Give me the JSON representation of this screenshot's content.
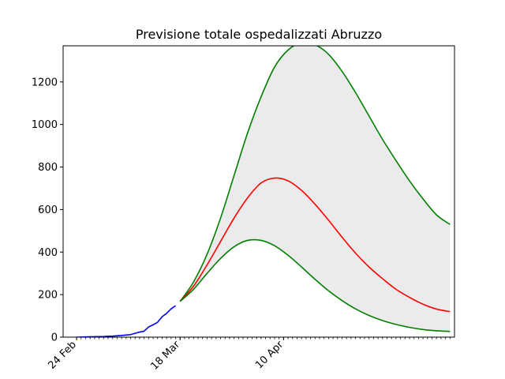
{
  "chart_data": {
    "type": "line",
    "title": "Previsione totale ospedalizzati Abruzzo",
    "xlabel": "",
    "ylabel": "",
    "x_range": [
      "2020-02-21",
      "2020-05-18"
    ],
    "ylim": [
      0,
      1370
    ],
    "y_ticks": [
      0,
      200,
      400,
      600,
      800,
      1000,
      1200
    ],
    "x_tick_labels": [
      {
        "date": "2020-02-24",
        "label": "24 Feb"
      },
      {
        "date": "2020-03-18",
        "label": "18 Mar"
      },
      {
        "date": "2020-04-10",
        "label": "10 Apr"
      }
    ],
    "x_minor_ticks": "daily",
    "grid": false,
    "legend": "none",
    "band": {
      "color": "#ebebeb",
      "lower_series": "lower",
      "upper_series": "upper"
    },
    "series": [
      {
        "id": "observed",
        "color": "#0000ff",
        "points": [
          [
            "2020-02-24",
            0
          ],
          [
            "2020-02-26",
            1
          ],
          [
            "2020-02-28",
            2
          ],
          [
            "2020-03-01",
            3
          ],
          [
            "2020-03-03",
            5
          ],
          [
            "2020-03-05",
            8
          ],
          [
            "2020-03-07",
            12
          ],
          [
            "2020-03-08",
            18
          ],
          [
            "2020-03-09",
            24
          ],
          [
            "2020-03-10",
            28
          ],
          [
            "2020-03-11",
            48
          ],
          [
            "2020-03-12",
            58
          ],
          [
            "2020-03-13",
            70
          ],
          [
            "2020-03-14",
            96
          ],
          [
            "2020-03-15",
            112
          ],
          [
            "2020-03-16",
            133
          ],
          [
            "2020-03-17",
            148
          ]
        ]
      },
      {
        "id": "upper",
        "color": "#008000",
        "points": [
          [
            "2020-03-18",
            168
          ],
          [
            "2020-03-21",
            260
          ],
          [
            "2020-03-24",
            390
          ],
          [
            "2020-03-27",
            560
          ],
          [
            "2020-03-30",
            760
          ],
          [
            "2020-04-02",
            960
          ],
          [
            "2020-04-05",
            1130
          ],
          [
            "2020-04-08",
            1270
          ],
          [
            "2020-04-11",
            1350
          ],
          [
            "2020-04-14",
            1385
          ],
          [
            "2020-04-17",
            1375
          ],
          [
            "2020-04-20",
            1330
          ],
          [
            "2020-04-23",
            1250
          ],
          [
            "2020-04-26",
            1150
          ],
          [
            "2020-04-29",
            1040
          ],
          [
            "2020-05-02",
            930
          ],
          [
            "2020-05-05",
            830
          ],
          [
            "2020-05-08",
            735
          ],
          [
            "2020-05-11",
            650
          ],
          [
            "2020-05-14",
            575
          ],
          [
            "2020-05-17",
            530
          ]
        ]
      },
      {
        "id": "central",
        "color": "#ff0000",
        "points": [
          [
            "2020-03-18",
            168
          ],
          [
            "2020-03-21",
            240
          ],
          [
            "2020-03-24",
            340
          ],
          [
            "2020-03-27",
            450
          ],
          [
            "2020-03-30",
            560
          ],
          [
            "2020-04-02",
            655
          ],
          [
            "2020-04-05",
            725
          ],
          [
            "2020-04-08",
            748
          ],
          [
            "2020-04-11",
            735
          ],
          [
            "2020-04-14",
            690
          ],
          [
            "2020-04-17",
            625
          ],
          [
            "2020-04-20",
            550
          ],
          [
            "2020-04-23",
            470
          ],
          [
            "2020-04-26",
            395
          ],
          [
            "2020-04-29",
            330
          ],
          [
            "2020-05-02",
            275
          ],
          [
            "2020-05-05",
            225
          ],
          [
            "2020-05-08",
            187
          ],
          [
            "2020-05-11",
            155
          ],
          [
            "2020-05-14",
            132
          ],
          [
            "2020-05-17",
            120
          ]
        ]
      },
      {
        "id": "lower",
        "color": "#008000",
        "points": [
          [
            "2020-03-18",
            168
          ],
          [
            "2020-03-21",
            225
          ],
          [
            "2020-03-24",
            300
          ],
          [
            "2020-03-27",
            370
          ],
          [
            "2020-03-30",
            425
          ],
          [
            "2020-04-02",
            455
          ],
          [
            "2020-04-05",
            455
          ],
          [
            "2020-04-08",
            430
          ],
          [
            "2020-04-11",
            385
          ],
          [
            "2020-04-14",
            330
          ],
          [
            "2020-04-17",
            272
          ],
          [
            "2020-04-20",
            218
          ],
          [
            "2020-04-23",
            172
          ],
          [
            "2020-04-26",
            133
          ],
          [
            "2020-04-29",
            102
          ],
          [
            "2020-05-02",
            78
          ],
          [
            "2020-05-05",
            60
          ],
          [
            "2020-05-08",
            46
          ],
          [
            "2020-05-11",
            36
          ],
          [
            "2020-05-14",
            30
          ],
          [
            "2020-05-17",
            27
          ]
        ]
      }
    ]
  }
}
